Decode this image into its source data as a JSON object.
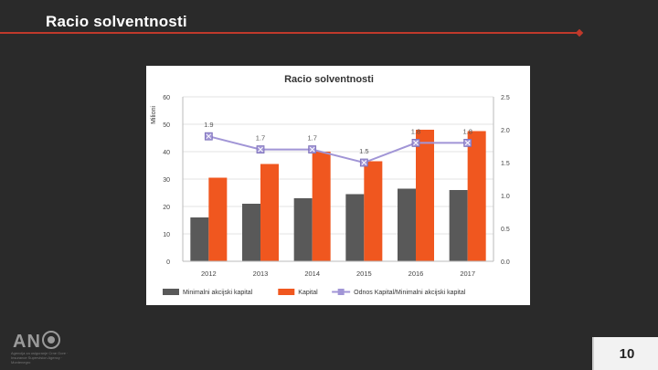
{
  "slide": {
    "title": "Racio solventnosti",
    "page_number": "10",
    "logo_text": "AN",
    "logo_tagline": "Agencija za osiguranje Crne Gore · Insurance Supervision Agency · Montenegro"
  },
  "colors": {
    "background": "#2a2a2a",
    "accent_line": "#c0392b",
    "series_min_capital": "#595959",
    "series_capital": "#f0571f",
    "series_ratio": "#a195d6"
  },
  "chart_data": {
    "type": "bar",
    "title": "Racio solventnosti",
    "ylabel": "Milioni",
    "categories": [
      "2012",
      "2013",
      "2014",
      "2015",
      "2016",
      "2017"
    ],
    "ylim": [
      0,
      60
    ],
    "y_ticks": [
      "0",
      "10",
      "20",
      "30",
      "40",
      "50",
      "60"
    ],
    "y2lim": [
      0.0,
      2.5
    ],
    "y2_ticks": [
      "0.0",
      "0.5",
      "1.0",
      "1.5",
      "2.0",
      "2.5"
    ],
    "series": [
      {
        "name": "Minimalni akcijski kapital",
        "kind": "bar",
        "axis": "left",
        "values": [
          16,
          21,
          23,
          24.5,
          26.5,
          26
        ]
      },
      {
        "name": "Kapital",
        "kind": "bar",
        "axis": "left",
        "values": [
          30.5,
          35.5,
          40,
          36.5,
          48,
          47.5
        ]
      },
      {
        "name": "Odnos Kapital/Minimalni akcijski kapital",
        "kind": "line",
        "axis": "right",
        "values": [
          1.9,
          1.7,
          1.7,
          1.5,
          1.8,
          1.8
        ],
        "labels": [
          "1.9",
          "1.7",
          "1.7",
          "1.5",
          "1.8",
          "1.8"
        ]
      }
    ],
    "legend_position": "bottom"
  }
}
